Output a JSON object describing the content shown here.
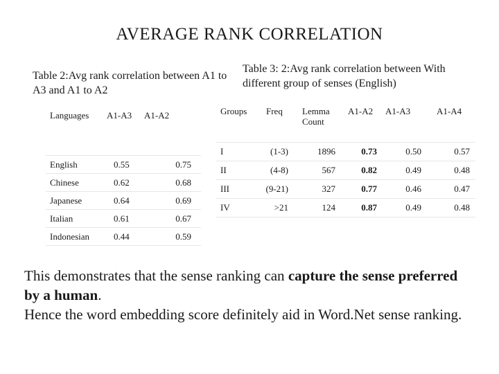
{
  "title": "AVERAGE RANK CORRELATION",
  "table2": {
    "caption": "Table 2:Avg rank correlation between A1 to A3 and A1 to A2",
    "headers": [
      "Languages",
      "A1-A3",
      "A1-A2"
    ],
    "rows": [
      [
        "English",
        "0.55",
        "0.75"
      ],
      [
        "Chinese",
        "0.62",
        "0.68"
      ],
      [
        "Japanese",
        "0.64",
        "0.69"
      ],
      [
        "Italian",
        "0.61",
        "0.67"
      ],
      [
        "Indonesian",
        "0.44",
        "0.59"
      ]
    ]
  },
  "table3": {
    "caption": "Table 3: 2:Avg rank correlation between With different group of senses (English)",
    "headers": [
      "Groups",
      "Freq",
      "Lemma Count",
      "A1-A2",
      "A1-A3",
      "A1-A4"
    ],
    "rows": [
      [
        "I",
        "(1-3)",
        "1896",
        "0.73",
        "0.50",
        "0.57"
      ],
      [
        "II",
        "(4-8)",
        "567",
        "0.82",
        "0.49",
        "0.48"
      ],
      [
        "III",
        "(9-21)",
        "327",
        "0.77",
        "0.46",
        "0.47"
      ],
      [
        "IV",
        ">21",
        "124",
        "0.87",
        "0.49",
        "0.48"
      ]
    ]
  },
  "conclusion": {
    "p1_start": "This demonstrates that the sense ranking can ",
    "p1_bold": "capture the sense preferred by a human",
    "p1_end": ".",
    "p2": "Hence the word embedding score definitely aid in Word.Net sense ranking."
  }
}
